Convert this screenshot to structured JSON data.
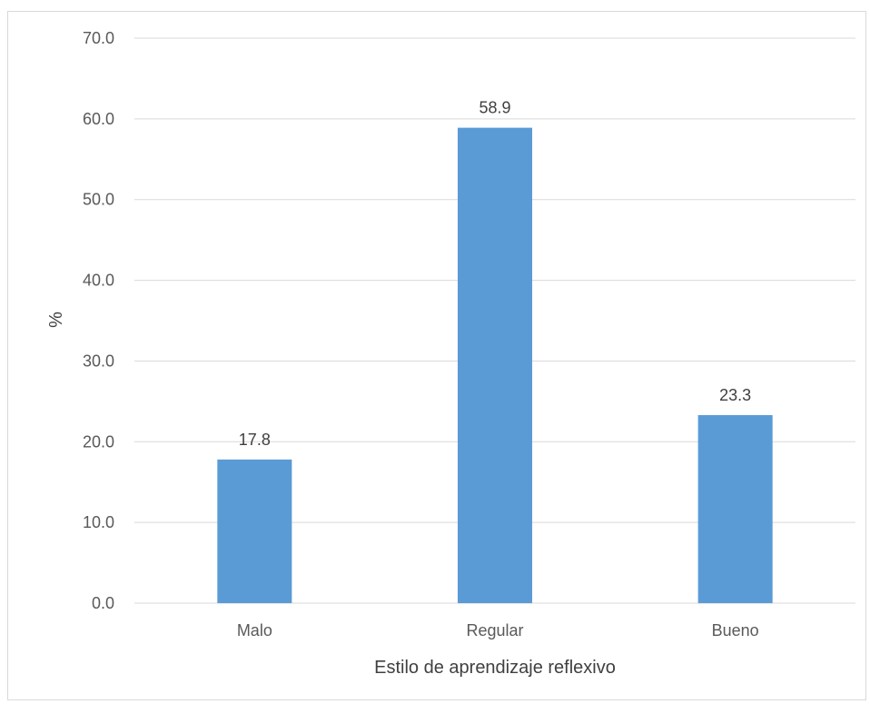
{
  "chart_data": {
    "type": "bar",
    "categories": [
      "Malo",
      "Regular",
      "Bueno"
    ],
    "values": [
      17.8,
      58.9,
      23.3
    ],
    "value_labels": [
      "17.8",
      "58.9",
      "23.3"
    ],
    "title": "",
    "xlabel": "Estilo de aprendizaje reflexivo",
    "ylabel": "%",
    "ylim": [
      0,
      70
    ],
    "yticks": [
      "0.0",
      "10.0",
      "20.0",
      "30.0",
      "40.0",
      "50.0",
      "60.0",
      "70.0"
    ],
    "grid": true,
    "legend": "none",
    "colors": {
      "bar": "#5b9bd5",
      "grid": "#d9d9d9",
      "frame": "#d9d9d9"
    }
  }
}
